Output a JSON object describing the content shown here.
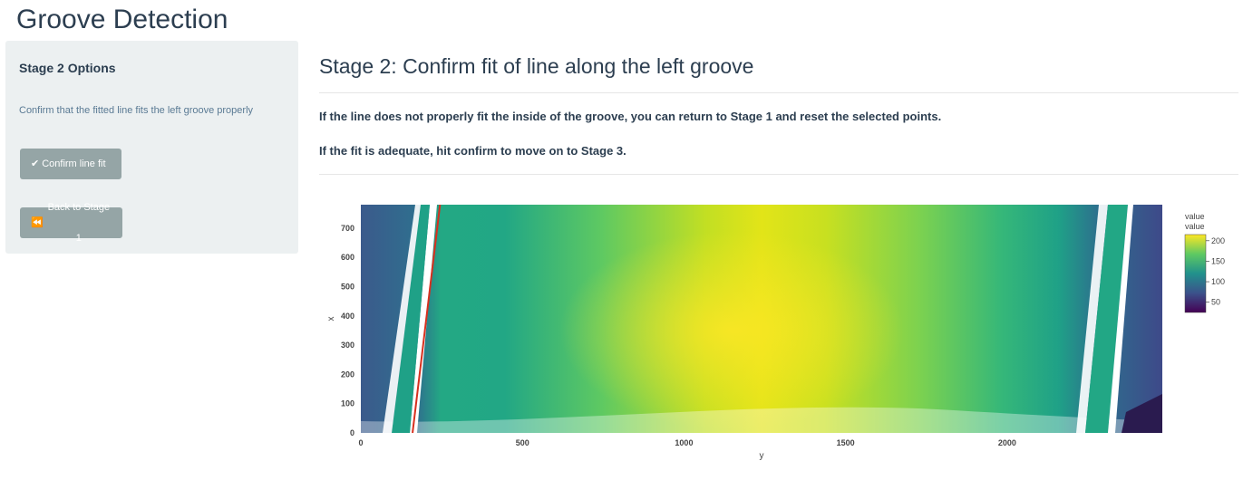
{
  "app": {
    "title": "Groove Detection"
  },
  "sidebar": {
    "heading": "Stage 2 Options",
    "help_text": "Confirm that the fitted line fits the left groove properly",
    "confirm_button": {
      "icon": "check-icon",
      "label": "Confirm line fit"
    },
    "back_button": {
      "icon": "backward-icon",
      "label": "Back to Stage 1"
    }
  },
  "main": {
    "title": "Stage 2: Confirm fit of line along the left groove",
    "instruction_1": "If the line does not properly fit the inside of the groove, you can return to Stage 1 and reset the selected points.",
    "instruction_2": "If the fit is adequate, hit confirm to move on to Stage 3."
  },
  "chart_data": {
    "type": "heatmap",
    "xlabel": "y",
    "ylabel": "x",
    "xlim": [
      0,
      2480
    ],
    "ylim": [
      0,
      780
    ],
    "x_ticks": [
      0,
      500,
      1000,
      1500,
      2000
    ],
    "y_ticks": [
      0,
      100,
      200,
      300,
      400,
      500,
      600,
      700
    ],
    "colorscale": "viridis",
    "colorbar": {
      "title_lines": [
        "value",
        "value"
      ],
      "range": [
        25,
        215
      ],
      "ticks": [
        50,
        100,
        150,
        200
      ]
    },
    "fitted_line": {
      "color": "#d7301f",
      "points": [
        [
          160,
          0
        ],
        [
          245,
          780
        ]
      ]
    },
    "legend_position": "right"
  }
}
